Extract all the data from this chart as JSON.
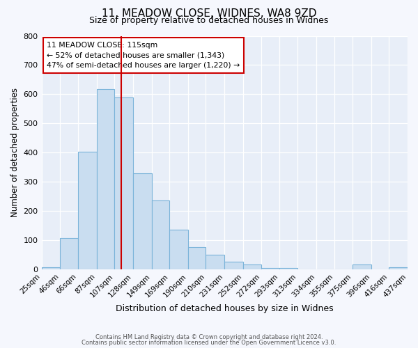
{
  "title_line1": "11, MEADOW CLOSE, WIDNES, WA8 9ZD",
  "title_line2": "Size of property relative to detached houses in Widnes",
  "xlabel": "Distribution of detached houses by size in Widnes",
  "ylabel": "Number of detached properties",
  "bin_edges": [
    25,
    46,
    66,
    87,
    107,
    128,
    149,
    169,
    190,
    210,
    231,
    252,
    272,
    293,
    313,
    334,
    355,
    375,
    396,
    416,
    437
  ],
  "bar_heights": [
    8,
    107,
    403,
    617,
    590,
    330,
    235,
    135,
    77,
    50,
    25,
    17,
    5,
    5,
    0,
    0,
    0,
    17,
    0,
    8
  ],
  "bar_color": "#c9ddf0",
  "bar_edge_color": "#7ab3d9",
  "background_color": "#e8eef8",
  "fig_background_color": "#f5f7fd",
  "grid_color": "#ffffff",
  "vline_x": 115,
  "vline_color": "#cc0000",
  "annotation_title": "11 MEADOW CLOSE: 115sqm",
  "annotation_line2": "← 52% of detached houses are smaller (1,343)",
  "annotation_line3": "47% of semi-detached houses are larger (1,220) →",
  "annotation_box_color": "#cc0000",
  "annotation_bg": "#ffffff",
  "ylim": [
    0,
    800
  ],
  "yticks": [
    0,
    100,
    200,
    300,
    400,
    500,
    600,
    700,
    800
  ],
  "footer_line1": "Contains HM Land Registry data © Crown copyright and database right 2024.",
  "footer_line2": "Contains public sector information licensed under the Open Government Licence v3.0."
}
